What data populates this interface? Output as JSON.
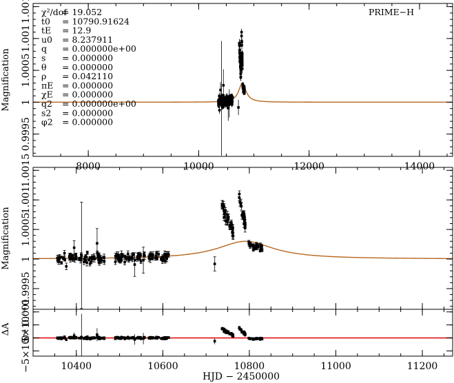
{
  "chart_data": [
    {
      "type": "scatter",
      "panel": "full-light-curve",
      "ylabel": "Magnification",
      "label": "PRIME−H",
      "xlim": [
        7000,
        14600
      ],
      "ylim": [
        0.99915,
        1.00155
      ],
      "x_ticks": [
        "8000",
        "10000",
        "12000",
        "14000"
      ],
      "x_tick_values": [
        8000,
        10000,
        12000,
        14000
      ],
      "y_ticks": [
        "0.9995",
        "1",
        "1.0005",
        "1.001",
        "1.0015"
      ],
      "y_tick_values": [
        0.9995,
        1.0,
        1.0005,
        1.001,
        1.0015
      ],
      "params": [
        {
          "name": "χ²/dof",
          "value": "= 19.052"
        },
        {
          "name": "t0",
          "value": "= 10790.91624"
        },
        {
          "name": "tE",
          "value": "= 12.9"
        },
        {
          "name": "u0",
          "value": "= 8.237911"
        },
        {
          "name": "q",
          "value": "= 0.000000e+00"
        },
        {
          "name": "s",
          "value": "= 0.000000"
        },
        {
          "name": "θ",
          "value": "= 0.000000"
        },
        {
          "name": "ρ",
          "value": "= 0.042110"
        },
        {
          "name": "πE",
          "value": "= 0.000000"
        },
        {
          "name": "χE",
          "value": "= 0.000000"
        },
        {
          "name": "q2",
          "value": "= 0.000000e+00"
        },
        {
          "name": "s2",
          "value": "= 0.000000"
        },
        {
          "name": "φ2",
          "value": "= 0.000000"
        }
      ],
      "model": {
        "baseline": 1.0,
        "peak": 1.0003,
        "t0": 10790.91624,
        "width": 80
      }
    },
    {
      "type": "scatter",
      "panel": "zoomed-light-curve",
      "ylabel": "Magnification",
      "xlim": [
        10300,
        11270
      ],
      "ylim": [
        0.99915,
        1.00155
      ],
      "y_ticks": [
        "0.9995",
        "1",
        "1.0005",
        "1.001",
        "1.0015"
      ],
      "y_tick_values": [
        0.9995,
        1.0,
        1.0005,
        1.001,
        1.0015
      ],
      "model": {
        "baseline": 1.0,
        "peak": 1.0003,
        "t0": 10790.91624,
        "width": 80
      }
    },
    {
      "type": "scatter",
      "panel": "residuals",
      "ylabel": "ΔA",
      "xlabel": "HJD − 2450000",
      "xlim": [
        10300,
        11270
      ],
      "ylim": [
        -0.0007,
        0.0011
      ],
      "x_ticks": [
        "10400",
        "10600",
        "10800",
        "11000",
        "11200"
      ],
      "x_tick_values": [
        10400,
        10600,
        10800,
        11000,
        11200
      ],
      "y_ticks": [
        "−5×10⁻⁴",
        "0",
        "5×10⁻⁴",
        "0.001"
      ],
      "y_tick_values": [
        -0.0005,
        0.0,
        0.0005,
        0.001
      ]
    }
  ],
  "colors": {
    "model": "#b8651e",
    "residual_line": "#e01010",
    "data": "#000000"
  }
}
